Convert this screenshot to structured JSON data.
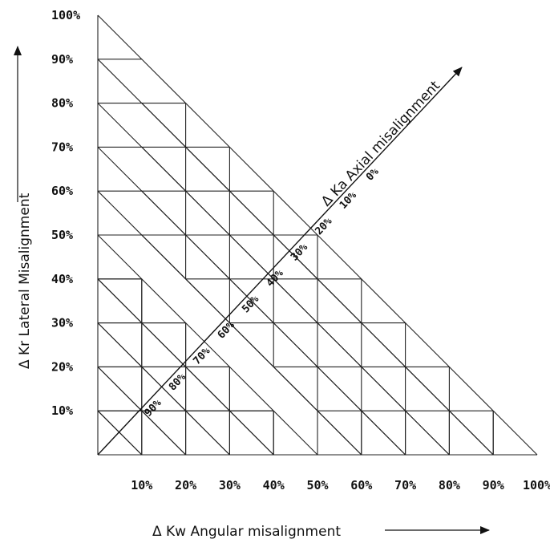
{
  "x_axis": {
    "title": "Δ Kw Angular misalignment",
    "ticks": [
      "10%",
      "20%",
      "30%",
      "40%",
      "50%",
      "60%",
      "70%",
      "80%",
      "90%",
      "100%"
    ]
  },
  "y_axis": {
    "title": "Δ Kr Lateral Misalignment",
    "ticks": [
      "10%",
      "20%",
      "30%",
      "40%",
      "50%",
      "60%",
      "70%",
      "80%",
      "90%",
      "100%"
    ]
  },
  "diagonal_axis": {
    "title": "Δ Ka Axial misalignment",
    "ticks": [
      "90%",
      "80%",
      "70%",
      "60%",
      "50%",
      "40%",
      "30%",
      "20%",
      "10%",
      "0%"
    ]
  }
}
